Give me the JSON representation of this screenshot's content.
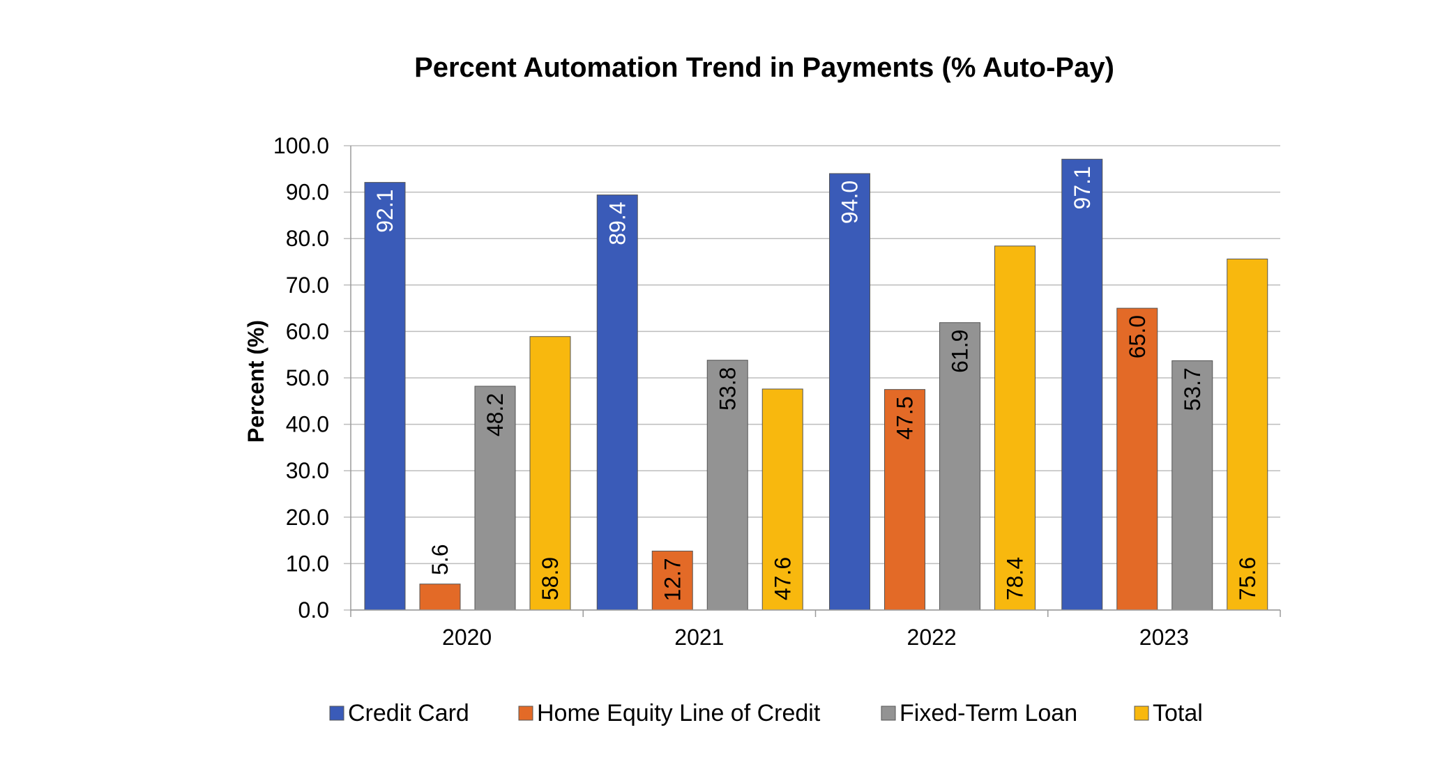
{
  "chart_data": {
    "type": "bar",
    "title": "Percent Automation Trend in Payments (% Auto-Pay)",
    "xlabel": "",
    "ylabel": "Percent (%)",
    "categories": [
      "2020",
      "2021",
      "2022",
      "2023"
    ],
    "ylim": [
      0,
      100
    ],
    "yticks": [
      "0.0",
      "10.0",
      "20.0",
      "30.0",
      "40.0",
      "50.0",
      "60.0",
      "70.0",
      "80.0",
      "90.0",
      "100.0"
    ],
    "grid": true,
    "legend_position": "bottom",
    "series": [
      {
        "name": "Credit Card",
        "color": "#3a5bb8",
        "values": [
          92.1,
          89.4,
          94.0,
          97.1
        ],
        "labels": [
          "92.1",
          "89.4",
          "94.0",
          "97.1"
        ],
        "label_color": "#ffffff"
      },
      {
        "name": "Home Equity Line of Credit",
        "color": "#e36a27",
        "values": [
          5.6,
          12.7,
          47.5,
          65.0
        ],
        "labels": [
          "5.6",
          "12.7",
          "47.5",
          "65.0"
        ],
        "label_color": "#000000"
      },
      {
        "name": "Fixed-Term Loan",
        "color": "#939393",
        "values": [
          48.2,
          53.8,
          61.9,
          53.7
        ],
        "labels": [
          "48.2",
          "53.8",
          "61.9",
          "53.7"
        ],
        "label_color": "#000000"
      },
      {
        "name": "Total",
        "color": "#f8b80e",
        "values": [
          58.9,
          47.6,
          78.4,
          75.6
        ],
        "labels": [
          "58.9",
          "47.6",
          "78.4",
          "75.6"
        ],
        "label_color": "#000000"
      }
    ]
  }
}
